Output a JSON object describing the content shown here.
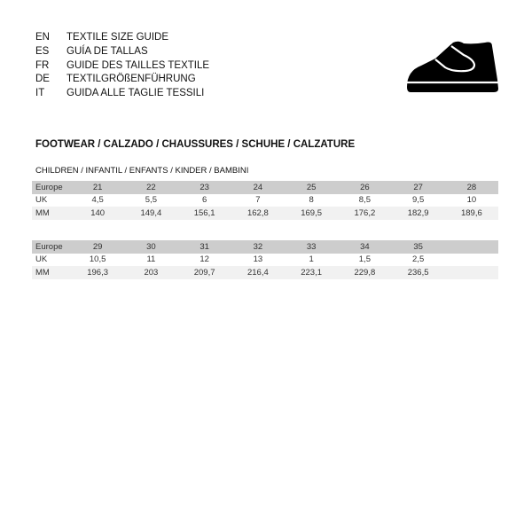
{
  "languages": [
    {
      "code": "EN",
      "title": "TEXTILE SIZE GUIDE"
    },
    {
      "code": "ES",
      "title": "GUÍA DE TALLAS"
    },
    {
      "code": "FR",
      "title": "GUIDE DES TAILLES TEXTILE"
    },
    {
      "code": "DE",
      "title": "TEXTILGRÖßENFÜHRUNG"
    },
    {
      "code": "IT",
      "title": "GUIDA ALLE TAGLIE TESSILI"
    }
  ],
  "icon": "shoe-icon",
  "section_title": "FOOTWEAR / CALZADO / CHAUSSURES / SCHUHE / CALZATURE",
  "subsection_title": "CHILDREN / INFANTIL / ENFANTS / KINDER / BAMBINI",
  "tables": [
    {
      "rows": [
        {
          "label": "Europe",
          "values": [
            "21",
            "22",
            "23",
            "24",
            "25",
            "26",
            "27",
            "28"
          ]
        },
        {
          "label": "UK",
          "values": [
            "4,5",
            "5,5",
            "6",
            "7",
            "8",
            "8,5",
            "9,5",
            "10"
          ]
        },
        {
          "label": "MM",
          "values": [
            "140",
            "149,4",
            "156,1",
            "162,8",
            "169,5",
            "176,2",
            "182,9",
            "189,6"
          ]
        }
      ]
    },
    {
      "rows": [
        {
          "label": "Europe",
          "values": [
            "29",
            "30",
            "31",
            "32",
            "33",
            "34",
            "35",
            ""
          ]
        },
        {
          "label": "UK",
          "values": [
            "10,5",
            "11",
            "12",
            "13",
            "1",
            "1,5",
            "2,5",
            ""
          ]
        },
        {
          "label": "MM",
          "values": [
            "196,3",
            "203",
            "209,7",
            "216,4",
            "223,1",
            "229,8",
            "236,5",
            ""
          ]
        }
      ]
    }
  ]
}
